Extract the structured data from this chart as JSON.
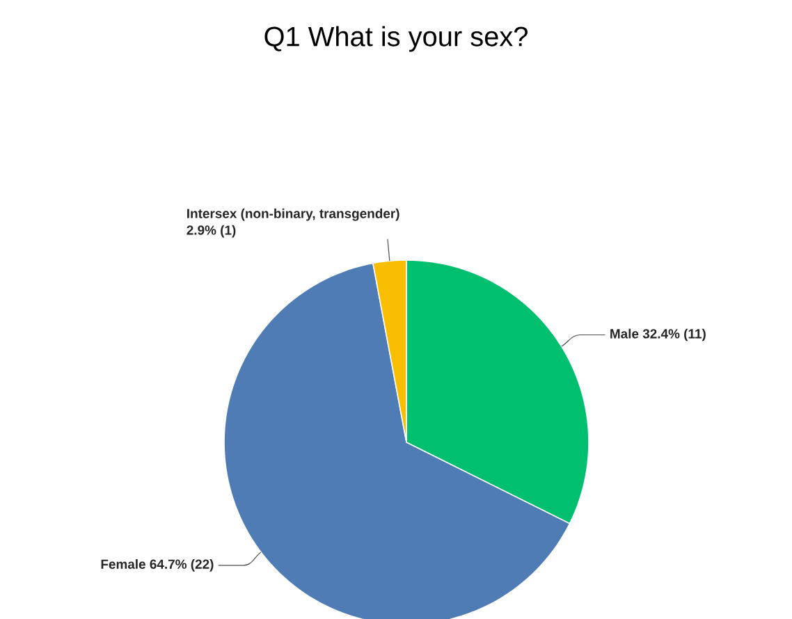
{
  "chart_data": {
    "type": "pie",
    "title": "Q1 What is your sex?",
    "categories": [
      "Male",
      "Female",
      "Intersex (non-binary, transgender)"
    ],
    "values": [
      11,
      22,
      1
    ],
    "value_labels": [
      "32.4% (11)",
      "64.7% (22)",
      "2.9% (1)"
    ],
    "colors": [
      "#00bf6f",
      "#507cb6",
      "#f9be00"
    ]
  }
}
